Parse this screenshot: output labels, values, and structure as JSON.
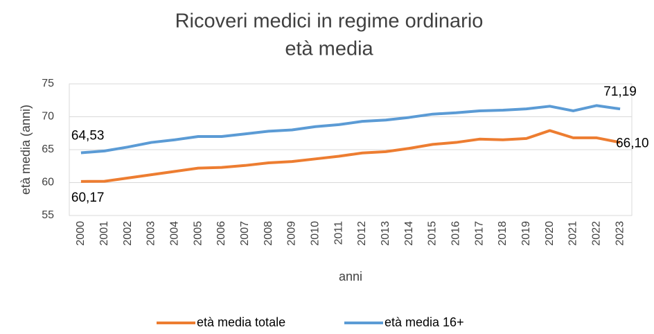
{
  "chart_data": {
    "type": "line",
    "title": "Ricoveri medici in regime ordinario",
    "subtitle": "età media",
    "x_label": "anni",
    "y_label": "età media (anni)",
    "categories": [
      "2000",
      "2001",
      "2002",
      "2003",
      "2004",
      "2005",
      "2006",
      "2007",
      "2008",
      "2009",
      "2010",
      "2011",
      "2012",
      "2013",
      "2014",
      "2015",
      "2016",
      "2017",
      "2018",
      "2019",
      "2020",
      "2021",
      "2022",
      "2023"
    ],
    "series": [
      {
        "name": "età media totale",
        "color": "#ed7d31",
        "values": [
          60.17,
          60.2,
          60.7,
          61.2,
          61.7,
          62.2,
          62.3,
          62.6,
          63.0,
          63.2,
          63.6,
          64.0,
          64.5,
          64.7,
          65.2,
          65.8,
          66.1,
          66.6,
          66.5,
          66.7,
          67.9,
          66.8,
          66.8,
          66.1
        ],
        "value_labels": [
          "60,17",
          null,
          null,
          null,
          null,
          null,
          null,
          null,
          null,
          null,
          null,
          null,
          null,
          null,
          null,
          null,
          null,
          null,
          null,
          null,
          null,
          null,
          null,
          "66,10"
        ]
      },
      {
        "name": "età media 16+",
        "color": "#5b9bd5",
        "values": [
          64.53,
          64.8,
          65.4,
          66.1,
          66.5,
          67.0,
          67.0,
          67.4,
          67.8,
          68.0,
          68.5,
          68.8,
          69.3,
          69.5,
          69.9,
          70.4,
          70.6,
          70.9,
          71.0,
          71.2,
          71.6,
          70.9,
          71.7,
          71.19
        ],
        "value_labels": [
          "64,53",
          null,
          null,
          null,
          null,
          null,
          null,
          null,
          null,
          null,
          null,
          null,
          null,
          null,
          null,
          null,
          null,
          null,
          null,
          null,
          null,
          null,
          null,
          "71,19"
        ]
      }
    ],
    "ylim": [
      55,
      75
    ],
    "yticks": [
      55,
      60,
      65,
      70,
      75
    ],
    "grid": true,
    "legend": "bottom"
  }
}
